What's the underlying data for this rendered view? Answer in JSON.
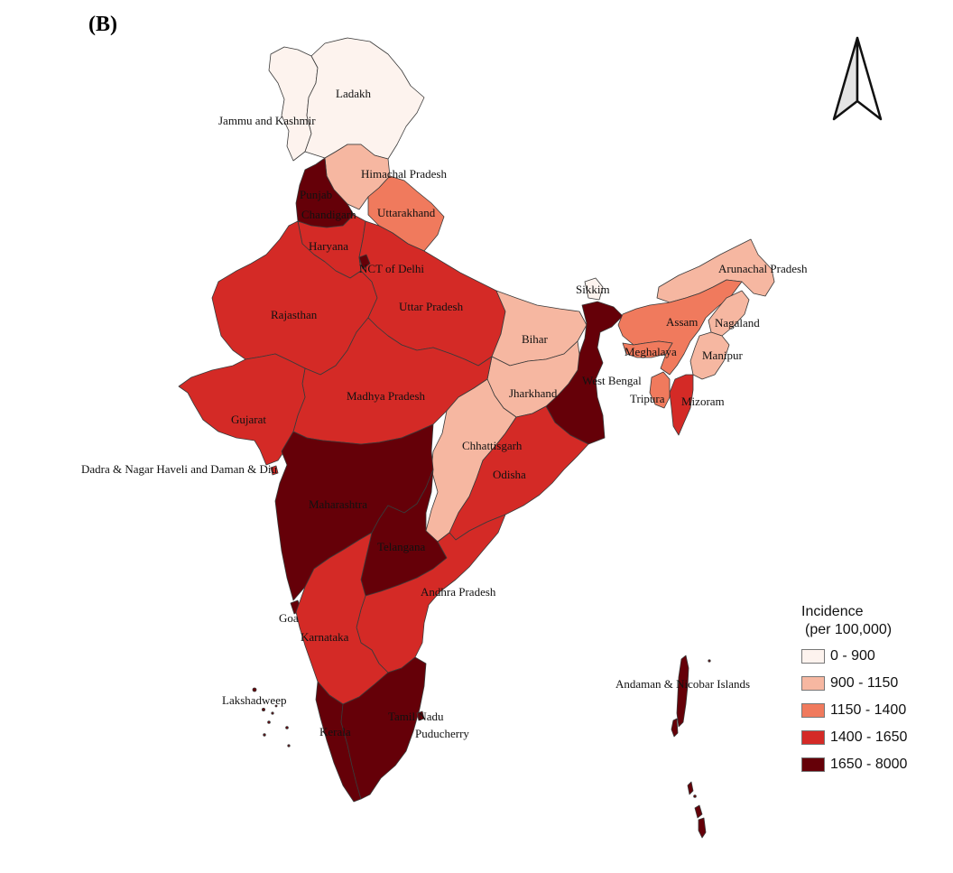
{
  "panel_label": "(B)",
  "legend": {
    "title_line1": "Incidence",
    "title_line2": "(per 100,000)",
    "classes": [
      {
        "label": "0 - 900",
        "color": "#fdf3ee"
      },
      {
        "label": "900 - 1150",
        "color": "#f6b7a1"
      },
      {
        "label": "1150 - 1400",
        "color": "#f07a5d"
      },
      {
        "label": "1400 - 1650",
        "color": "#d42a26"
      },
      {
        "label": "1650 - 8000",
        "color": "#650008"
      }
    ]
  },
  "regions": {
    "ladakh": {
      "label": "Ladakh",
      "class": 0
    },
    "jammu_kashmir": {
      "label": "Jammu and Kashmir",
      "class": 0
    },
    "himachal": {
      "label": "Himachal Pradesh",
      "class": 1
    },
    "punjab": {
      "label": "Punjab",
      "class": 4
    },
    "chandigarh": {
      "label": "Chandigarh",
      "class": 4
    },
    "uttarakhand": {
      "label": "Uttarakhand",
      "class": 2
    },
    "haryana": {
      "label": "Haryana",
      "class": 3
    },
    "delhi": {
      "label": "NCT of Delhi",
      "class": 4
    },
    "rajasthan": {
      "label": "Rajasthan",
      "class": 3
    },
    "uttar_pradesh": {
      "label": "Uttar Pradesh",
      "class": 3
    },
    "bihar": {
      "label": "Bihar",
      "class": 1
    },
    "sikkim": {
      "label": "Sikkim",
      "class": 0
    },
    "west_bengal": {
      "label": "West Bengal",
      "class": 4
    },
    "jharkhand": {
      "label": "Jharkhand",
      "class": 1
    },
    "madhya_pradesh": {
      "label": "Madhya Pradesh",
      "class": 3
    },
    "gujarat": {
      "label": "Gujarat",
      "class": 3
    },
    "dnh_dd": {
      "label": "Dadra & Nagar Haveli and Daman & Diu",
      "class": 3
    },
    "chhattisgarh": {
      "label": "Chhattisgarh",
      "class": 1
    },
    "odisha": {
      "label": "Odisha",
      "class": 3
    },
    "maharashtra": {
      "label": "Maharashtra",
      "class": 4
    },
    "telangana": {
      "label": "Telangana",
      "class": 4
    },
    "andhra_pradesh": {
      "label": "Andhra Pradesh",
      "class": 3
    },
    "goa": {
      "label": "Goa",
      "class": 4
    },
    "karnataka": {
      "label": "Karnataka",
      "class": 3
    },
    "kerala": {
      "label": "Kerala",
      "class": 4
    },
    "tamil_nadu": {
      "label": "Tamil Nadu",
      "class": 4
    },
    "puducherry": {
      "label": "Puducherry",
      "class": 4
    },
    "lakshadweep": {
      "label": "Lakshadweep",
      "class": 4
    },
    "arunachal": {
      "label": "Arunachal Pradesh",
      "class": 1
    },
    "assam": {
      "label": "Assam",
      "class": 2
    },
    "nagaland": {
      "label": "Nagaland",
      "class": 1
    },
    "meghalaya": {
      "label": "Meghalaya",
      "class": 2
    },
    "manipur": {
      "label": "Manipur",
      "class": 1
    },
    "tripura": {
      "label": "Tripura",
      "class": 2
    },
    "mizoram": {
      "label": "Mizoram",
      "class": 3
    },
    "andaman_nicobar": {
      "label": "Andaman & Nicobar Islands",
      "class": 4
    }
  }
}
